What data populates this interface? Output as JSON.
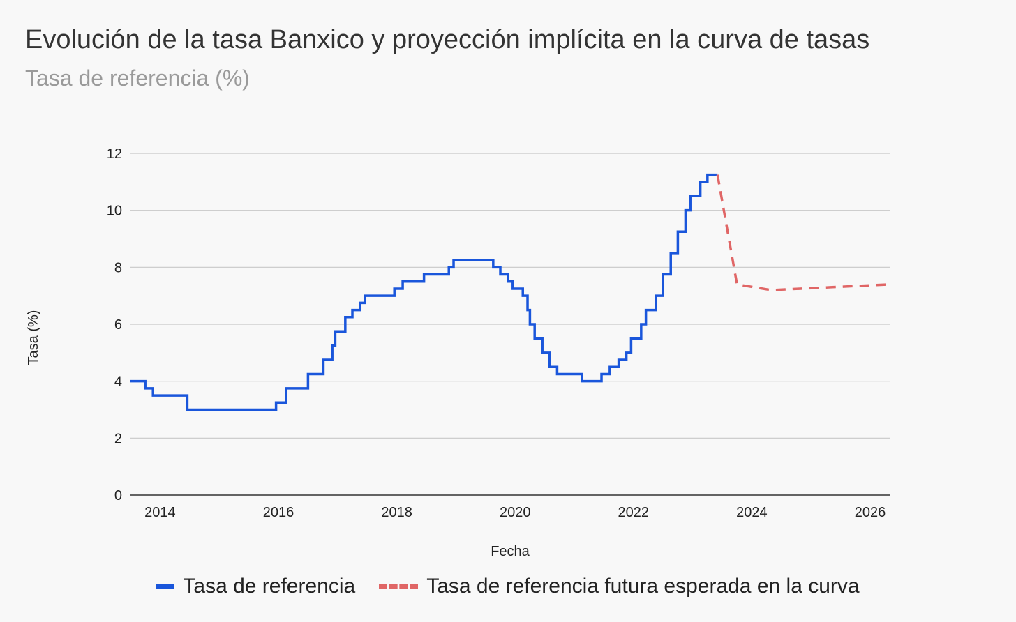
{
  "title": "Evolución de la tasa Banxico y proyección implícita en la curva de tasas",
  "subtitle": "Tasa de referencia (%)",
  "chart_data": {
    "type": "line",
    "title": "Evolución de la tasa Banxico y proyección implícita en la curva de tasas",
    "subtitle": "Tasa de referencia (%)",
    "xlabel": "Fecha",
    "ylabel": "Tasa (%)",
    "xlim": [
      2013.5,
      2026.33
    ],
    "ylim": [
      0,
      12
    ],
    "xticks": [
      2014,
      2016,
      2018,
      2020,
      2022,
      2024,
      2026
    ],
    "yticks": [
      0,
      2,
      4,
      6,
      8,
      10,
      12
    ],
    "grid": "horizontal",
    "legend_position": "bottom",
    "series": [
      {
        "name": "Tasa de referencia",
        "style": "step",
        "color": "#1a56db",
        "points": [
          [
            2013.5,
            4.0
          ],
          [
            2013.75,
            3.75
          ],
          [
            2013.88,
            3.5
          ],
          [
            2014.46,
            3.0
          ],
          [
            2015.96,
            3.25
          ],
          [
            2016.13,
            3.75
          ],
          [
            2016.5,
            4.25
          ],
          [
            2016.76,
            4.75
          ],
          [
            2016.91,
            5.25
          ],
          [
            2016.96,
            5.75
          ],
          [
            2017.13,
            6.25
          ],
          [
            2017.25,
            6.5
          ],
          [
            2017.38,
            6.75
          ],
          [
            2017.46,
            7.0
          ],
          [
            2017.96,
            7.25
          ],
          [
            2018.1,
            7.5
          ],
          [
            2018.46,
            7.75
          ],
          [
            2018.88,
            8.0
          ],
          [
            2018.96,
            8.25
          ],
          [
            2019.63,
            8.0
          ],
          [
            2019.75,
            7.75
          ],
          [
            2019.88,
            7.5
          ],
          [
            2019.96,
            7.25
          ],
          [
            2020.13,
            7.0
          ],
          [
            2020.21,
            6.5
          ],
          [
            2020.25,
            6.0
          ],
          [
            2020.33,
            5.5
          ],
          [
            2020.46,
            5.0
          ],
          [
            2020.58,
            4.5
          ],
          [
            2020.71,
            4.25
          ],
          [
            2021.13,
            4.0
          ],
          [
            2021.46,
            4.25
          ],
          [
            2021.6,
            4.5
          ],
          [
            2021.75,
            4.75
          ],
          [
            2021.88,
            5.0
          ],
          [
            2021.96,
            5.5
          ],
          [
            2022.13,
            6.0
          ],
          [
            2022.21,
            6.5
          ],
          [
            2022.38,
            7.0
          ],
          [
            2022.5,
            7.75
          ],
          [
            2022.63,
            8.5
          ],
          [
            2022.75,
            9.25
          ],
          [
            2022.88,
            10.0
          ],
          [
            2022.96,
            10.5
          ],
          [
            2023.13,
            11.0
          ],
          [
            2023.25,
            11.25
          ],
          [
            2023.42,
            11.25
          ]
        ]
      },
      {
        "name": "Tasa de referencia futura esperada en la curva",
        "style": "dashed",
        "color": "#e06666",
        "points": [
          [
            2023.42,
            11.25
          ],
          [
            2023.75,
            7.4
          ],
          [
            2024.33,
            7.2
          ],
          [
            2025.33,
            7.3
          ],
          [
            2026.33,
            7.4
          ]
        ]
      }
    ]
  }
}
